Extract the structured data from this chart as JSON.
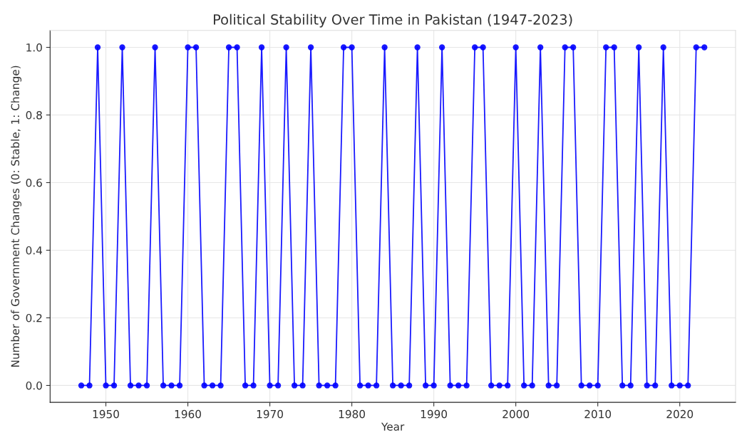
{
  "chart_data": {
    "type": "line",
    "title": "Political Stability Over Time in Pakistan (1947-2023)",
    "xlabel": "Year",
    "ylabel": "Number of Government Changes (0: Stable, 1: Change)",
    "x": [
      1947,
      1948,
      1949,
      1950,
      1951,
      1952,
      1953,
      1954,
      1955,
      1956,
      1957,
      1958,
      1959,
      1960,
      1961,
      1962,
      1963,
      1964,
      1965,
      1966,
      1967,
      1968,
      1969,
      1970,
      1971,
      1972,
      1973,
      1974,
      1975,
      1976,
      1977,
      1978,
      1979,
      1980,
      1981,
      1982,
      1983,
      1984,
      1985,
      1986,
      1987,
      1988,
      1989,
      1990,
      1991,
      1992,
      1993,
      1994,
      1995,
      1996,
      1997,
      1998,
      1999,
      2000,
      2001,
      2002,
      2003,
      2004,
      2005,
      2006,
      2007,
      2008,
      2009,
      2010,
      2011,
      2012,
      2013,
      2014,
      2015,
      2016,
      2017,
      2018,
      2019,
      2020,
      2021,
      2022,
      2023
    ],
    "series": [
      {
        "color": "#0000ff",
        "values": [
          0,
          0,
          1,
          0,
          0,
          1,
          0,
          0,
          0,
          1,
          0,
          0,
          0,
          1,
          1,
          0,
          0,
          0,
          1,
          1,
          0,
          0,
          1,
          0,
          0,
          1,
          0,
          0,
          1,
          0,
          0,
          0,
          1,
          1,
          0,
          0,
          0,
          1,
          0,
          0,
          0,
          1,
          0,
          0,
          1,
          0,
          0,
          0,
          1,
          1,
          0,
          0,
          0,
          1,
          0,
          0,
          1,
          0,
          0,
          1,
          1,
          0,
          0,
          0,
          1,
          1,
          0,
          0,
          1,
          0,
          0,
          1,
          0,
          0,
          0,
          1,
          1
        ]
      }
    ],
    "xlim": [
      1943.2,
      2026.8
    ],
    "ylim": [
      -0.05,
      1.05
    ],
    "xticks": [
      1950,
      1960,
      1970,
      1980,
      1990,
      2000,
      2010,
      2020
    ],
    "yticks": [
      {
        "value": 0,
        "label": "0.0"
      },
      {
        "value": 0.2,
        "label": "0.2"
      },
      {
        "value": 0.4,
        "label": "0.4"
      },
      {
        "value": 0.6,
        "label": "0.6"
      },
      {
        "value": 0.8,
        "label": "0.8"
      },
      {
        "value": 1,
        "label": "1.0"
      }
    ],
    "grid": true,
    "marker": "circle",
    "line_style": "solid"
  }
}
